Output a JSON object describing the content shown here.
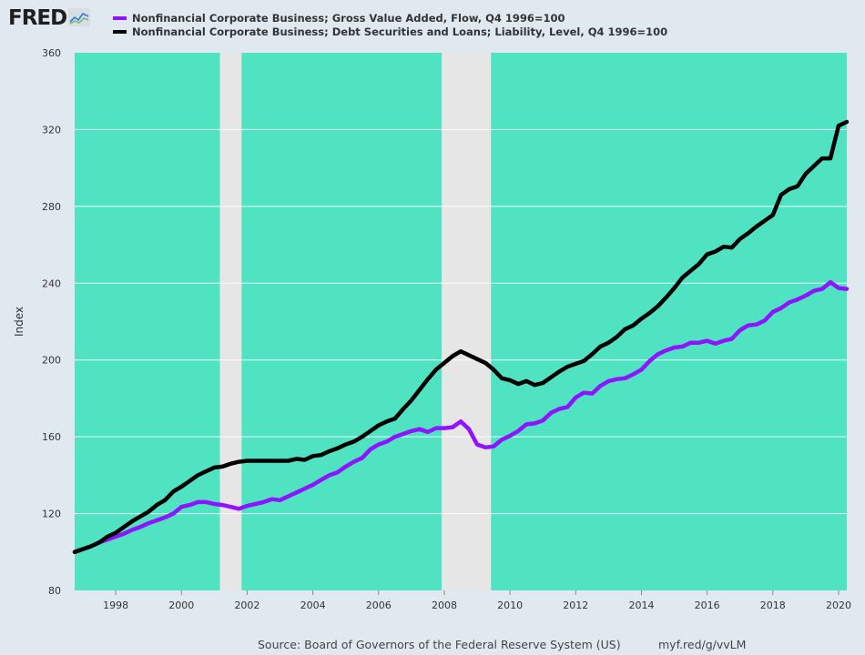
{
  "header": {
    "logo_text": "FRED",
    "logo_icon": "chart-line-icon"
  },
  "legend": [
    {
      "label": "Nonfinancial Corporate Business; Gross Value Added, Flow, Q4 1996=100",
      "color": "#9013fe"
    },
    {
      "label": "Nonfinancial Corporate Business; Debt Securities and Loans; Liability, Level, Q4 1996=100",
      "color": "#000000"
    }
  ],
  "footer": {
    "source": "Source: Board of Governors of the Federal Reserve System (US)",
    "shortlink": "myf.red/g/vvLM"
  },
  "colors": {
    "plot_background": "#50e3c2",
    "recession_shading": "#e6e6e6",
    "page_background": "#e1e9f0",
    "gross_value_added": "#9013fe",
    "debt": "#000000"
  },
  "chart_data": {
    "type": "line",
    "ylabel": "Index",
    "ylim": [
      80,
      360
    ],
    "yticks": [
      80,
      120,
      160,
      200,
      240,
      280,
      320,
      360
    ],
    "xlim": [
      1996.75,
      2020.25
    ],
    "xticks": [
      1998,
      2000,
      2002,
      2004,
      2006,
      2008,
      2010,
      2012,
      2014,
      2016,
      2018,
      2020
    ],
    "grid": true,
    "legend_position": "top",
    "recessions": [
      [
        2001.17,
        2001.83
      ],
      [
        2007.92,
        2009.42
      ]
    ],
    "x": [
      1996.75,
      1997.0,
      1997.25,
      1997.5,
      1997.75,
      1998.0,
      1998.25,
      1998.5,
      1998.75,
      1999.0,
      1999.25,
      1999.5,
      1999.75,
      2000.0,
      2000.25,
      2000.5,
      2000.75,
      2001.0,
      2001.25,
      2001.5,
      2001.75,
      2002.0,
      2002.25,
      2002.5,
      2002.75,
      2003.0,
      2003.25,
      2003.5,
      2003.75,
      2004.0,
      2004.25,
      2004.5,
      2004.75,
      2005.0,
      2005.25,
      2005.5,
      2005.75,
      2006.0,
      2006.25,
      2006.5,
      2006.75,
      2007.0,
      2007.25,
      2007.5,
      2007.75,
      2008.0,
      2008.25,
      2008.5,
      2008.75,
      2009.0,
      2009.25,
      2009.5,
      2009.75,
      2010.0,
      2010.25,
      2010.5,
      2010.75,
      2011.0,
      2011.25,
      2011.5,
      2011.75,
      2012.0,
      2012.25,
      2012.5,
      2012.75,
      2013.0,
      2013.25,
      2013.5,
      2013.75,
      2014.0,
      2014.25,
      2014.5,
      2014.75,
      2015.0,
      2015.25,
      2015.5,
      2015.75,
      2016.0,
      2016.25,
      2016.5,
      2016.75,
      2017.0,
      2017.25,
      2017.5,
      2017.75,
      2018.0,
      2018.25,
      2018.5,
      2018.75,
      2019.0,
      2019.25,
      2019.5,
      2019.75,
      2020.0,
      2020.25
    ],
    "series": [
      {
        "name": "Nonfinancial Corporate Business; Gross Value Added, Flow, Q4 1996=100",
        "color": "#9013fe",
        "values": [
          100,
          101.5,
          103,
          105,
          106.5,
          108,
          109.5,
          111.5,
          113,
          115,
          116.5,
          118,
          120,
          123.5,
          124.5,
          126,
          126,
          125,
          124.5,
          123.5,
          122.5,
          124,
          125,
          126,
          127.5,
          127,
          129,
          131,
          133,
          135,
          137.5,
          140,
          141.5,
          144.5,
          147,
          149,
          153.5,
          156,
          157.5,
          160,
          161.5,
          163,
          164,
          162.5,
          164.5,
          164.5,
          165,
          168,
          164,
          156,
          154.5,
          155,
          158.5,
          160.5,
          163,
          166.5,
          167,
          168.5,
          172.5,
          174.5,
          175.5,
          180.5,
          183,
          182.5,
          186.5,
          189,
          190,
          190.5,
          192.5,
          195,
          199.5,
          203,
          205,
          206.5,
          207,
          209,
          209,
          210,
          208.5,
          210,
          211,
          215.5,
          218,
          218.5,
          220.5,
          225,
          227,
          230,
          231.5,
          233.5,
          236,
          237,
          240.5,
          237.5,
          237
        ]
      },
      {
        "name": "Nonfinancial Corporate Business; Debt Securities and Loans; Liability, Level, Q4 1996=100",
        "color": "#000000",
        "values": [
          100,
          101.5,
          103,
          105,
          108,
          110,
          113,
          116,
          118.5,
          121,
          124.5,
          127,
          131.5,
          134,
          137,
          140,
          142,
          144,
          144.5,
          146,
          147,
          147.5,
          147.5,
          147.5,
          147.5,
          147.5,
          147.5,
          148.5,
          148,
          150,
          150.5,
          152.5,
          154,
          156,
          157.5,
          160,
          163,
          166,
          168,
          169.5,
          174.5,
          179,
          184.5,
          190,
          195,
          198.5,
          202,
          204.5,
          202.5,
          200.5,
          198.5,
          195,
          190.5,
          189.5,
          187.5,
          189,
          187,
          188,
          191,
          194,
          196.5,
          198,
          199.5,
          203,
          207,
          209,
          212,
          216,
          218,
          221.5,
          224.5,
          228,
          232.5,
          237.5,
          243,
          246.5,
          250,
          255,
          256.5,
          259,
          258.5,
          263,
          266,
          269.5,
          272.5,
          275.5,
          286,
          289,
          290.5,
          297,
          301,
          305,
          305,
          322,
          324
        ]
      }
    ]
  }
}
